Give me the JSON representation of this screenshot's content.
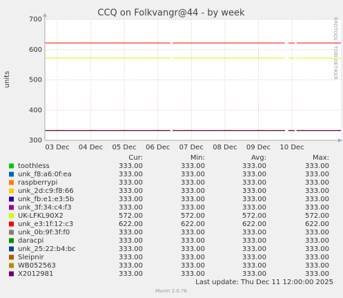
{
  "chart_data": {
    "type": "line",
    "title": "CCQ on Folkvangr@44 - by week",
    "ylabel": "units",
    "side_text": "RRDTOOL / TOBI OETIKER",
    "footer": "Last update: Thu Dec 11 12:00:00 2025",
    "version": "Munin 2.0.76",
    "ylim": [
      300,
      700
    ],
    "yticks": [
      300,
      400,
      500,
      600,
      700
    ],
    "xlim": [
      2.63,
      11.46
    ],
    "xticks": [
      {
        "value": 3,
        "label": "03 Dec"
      },
      {
        "value": 4,
        "label": "04 Dec"
      },
      {
        "value": 5,
        "label": "05 Dec"
      },
      {
        "value": 6,
        "label": "06 Dec"
      },
      {
        "value": 7,
        "label": "07 Dec"
      },
      {
        "value": 8,
        "label": "08 Dec"
      },
      {
        "value": 9,
        "label": "09 Dec"
      },
      {
        "value": 10,
        "label": "10 Dec"
      }
    ],
    "grid": true,
    "legend_columns": [
      "Cur:",
      "Min:",
      "Avg:",
      "Max:"
    ],
    "x": [
      2.63,
      6.37,
      6.4,
      6.44,
      9.79,
      9.84,
      9.89,
      10.08,
      10.11,
      10.14,
      11.46
    ],
    "series": [
      {
        "name": "toothless",
        "color": "#00cc00",
        "values": [
          333,
          333,
          null,
          333,
          333,
          null,
          333,
          333,
          null,
          333,
          333
        ],
        "stats": [
          "333.00",
          "333.00",
          "333.00",
          "333.00"
        ]
      },
      {
        "name": "unk_f8:a6:0f:ea",
        "color": "#0066b3",
        "values": [
          333,
          333,
          null,
          333,
          333,
          null,
          333,
          333,
          null,
          333,
          333
        ],
        "stats": [
          "333.00",
          "333.00",
          "333.00",
          "333.00"
        ]
      },
      {
        "name": "raspberrypi",
        "color": "#ff8000",
        "values": [
          333,
          333,
          null,
          333,
          333,
          null,
          333,
          333,
          null,
          333,
          333
        ],
        "stats": [
          "333.00",
          "333.00",
          "333.00",
          "333.00"
        ]
      },
      {
        "name": "unk_2d:c9:f8:66",
        "color": "#ffcc00",
        "values": [
          333,
          333,
          null,
          333,
          333,
          null,
          333,
          333,
          null,
          333,
          333
        ],
        "stats": [
          "333.00",
          "333.00",
          "333.00",
          "333.00"
        ]
      },
      {
        "name": "unk_fb:e1:e3:5b",
        "color": "#330099",
        "values": [
          333,
          333,
          null,
          333,
          333,
          null,
          333,
          333,
          null,
          333,
          333
        ],
        "stats": [
          "333.00",
          "333.00",
          "333.00",
          "333.00"
        ]
      },
      {
        "name": "unk_3f:34:c4:f3",
        "color": "#990099",
        "values": [
          333,
          333,
          null,
          333,
          333,
          null,
          333,
          333,
          null,
          333,
          333
        ],
        "stats": [
          "333.00",
          "333.00",
          "333.00",
          "333.00"
        ]
      },
      {
        "name": "UK-LFKL90X2",
        "color": "#ccff00",
        "values": [
          572,
          572,
          null,
          572,
          572,
          null,
          572,
          572,
          null,
          572,
          572
        ],
        "stats": [
          "572.00",
          "572.00",
          "572.00",
          "572.00"
        ]
      },
      {
        "name": "unk_e3:1f:12:c3",
        "color": "#ff0000",
        "values": [
          622,
          622,
          null,
          622,
          622,
          null,
          622,
          622,
          null,
          622,
          622
        ],
        "stats": [
          "622.00",
          "622.00",
          "622.00",
          "622.00"
        ]
      },
      {
        "name": "unk_0b:9f:3f:f0",
        "color": "#808080",
        "values": [
          333,
          333,
          null,
          333,
          333,
          null,
          333,
          333,
          null,
          333,
          333
        ],
        "stats": [
          "333.00",
          "333.00",
          "333.00",
          "333.00"
        ]
      },
      {
        "name": "daracpi",
        "color": "#008f00",
        "values": [
          333,
          333,
          null,
          333,
          333,
          null,
          333,
          333,
          null,
          333,
          333
        ],
        "stats": [
          "333.00",
          "333.00",
          "333.00",
          "333.00"
        ]
      },
      {
        "name": "unk_25:22:b4:bc",
        "color": "#00487d",
        "values": [
          333,
          333,
          null,
          333,
          333,
          null,
          333,
          333,
          null,
          333,
          333
        ],
        "stats": [
          "333.00",
          "333.00",
          "333.00",
          "333.00"
        ]
      },
      {
        "name": "Sleipnir",
        "color": "#b35a00",
        "values": [
          333,
          333,
          null,
          333,
          333,
          null,
          333,
          333,
          null,
          333,
          333
        ],
        "stats": [
          "333.00",
          "333.00",
          "333.00",
          "333.00"
        ]
      },
      {
        "name": "WB052563",
        "color": "#b38f00",
        "values": [
          333,
          333,
          null,
          333,
          333,
          null,
          333,
          333,
          null,
          333,
          333
        ],
        "stats": [
          "333.00",
          "333.00",
          "333.00",
          "333.00"
        ]
      },
      {
        "name": "X2012981",
        "color": "#6b006b",
        "values": [
          333,
          333,
          null,
          333,
          333,
          null,
          333,
          333,
          null,
          333,
          333
        ],
        "stats": [
          "333.00",
          "333.00",
          "333.00",
          "333.00"
        ]
      }
    ]
  }
}
